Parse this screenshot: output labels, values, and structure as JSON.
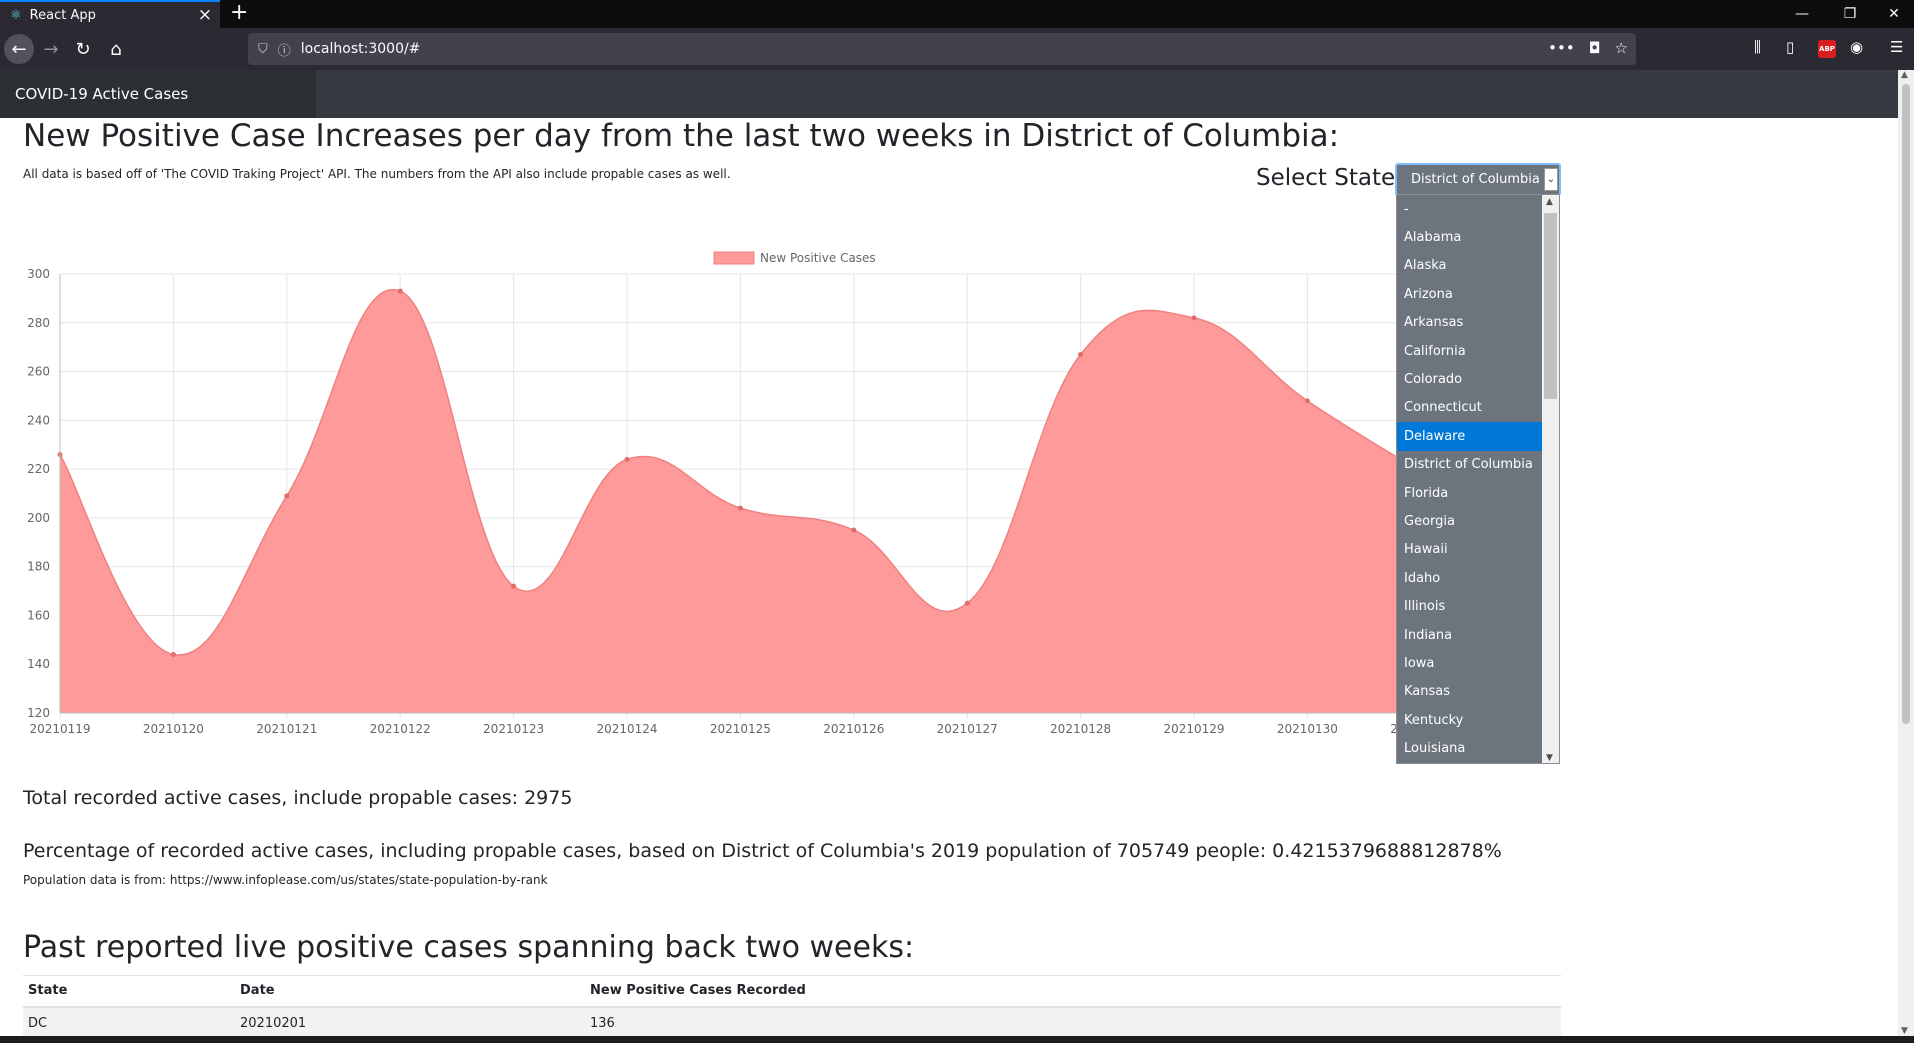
{
  "browser": {
    "tab_title": "React App",
    "url": "localhost:3000/#"
  },
  "app": {
    "brand": "COVID-19 Active Cases"
  },
  "page": {
    "heading": "New Positive Case Increases per day from the last two weeks in District of Columbia:",
    "subtitle": "All data is based off of 'The COVID Traking Project' API. The numbers from the API also include propable cases as well.",
    "select_label": "Select State:",
    "select_value": "District of Columbia",
    "state_options": [
      "-",
      "Alabama",
      "Alaska",
      "Arizona",
      "Arkansas",
      "California",
      "Colorado",
      "Connecticut",
      "Delaware",
      "District of Columbia",
      "Florida",
      "Georgia",
      "Hawaii",
      "Idaho",
      "Illinois",
      "Indiana",
      "Iowa",
      "Kansas",
      "Kentucky",
      "Louisiana"
    ],
    "highlighted_option": "Delaware",
    "total_active": "Total recorded active cases, include propable cases: 2975",
    "percentage": "Percentage of recorded active cases, including propable cases, based on District of Columbia's 2019 population of 705749 people: 0.4215379688812878%",
    "population_source": "Population data is from: https://www.infoplease.com/us/states/state-population-by-rank",
    "table_heading": "Past reported live positive cases spanning back two weeks:",
    "table": {
      "columns": [
        "State",
        "Date",
        "New Positive Cases Recorded"
      ],
      "rows": [
        [
          "DC",
          "20210201",
          "136"
        ]
      ]
    }
  },
  "chart_data": {
    "type": "area",
    "series": [
      {
        "name": "New Positive Cases",
        "color": "#ff6384",
        "fill": "#ff9a9a",
        "values": [
          226,
          144,
          209,
          293,
          172,
          224,
          204,
          195,
          165,
          267,
          282,
          248,
          219
        ]
      }
    ],
    "x": [
      "20210119",
      "20210120",
      "20210121",
      "20210122",
      "20210123",
      "20210124",
      "20210125",
      "20210126",
      "20210127",
      "20210128",
      "20210129",
      "20210130",
      "20210131"
    ],
    "yticks": [
      "120",
      "140",
      "160",
      "180",
      "200",
      "220",
      "240",
      "260",
      "280",
      "300"
    ],
    "ylim": [
      120,
      300
    ],
    "legend": "top",
    "grid": true
  }
}
